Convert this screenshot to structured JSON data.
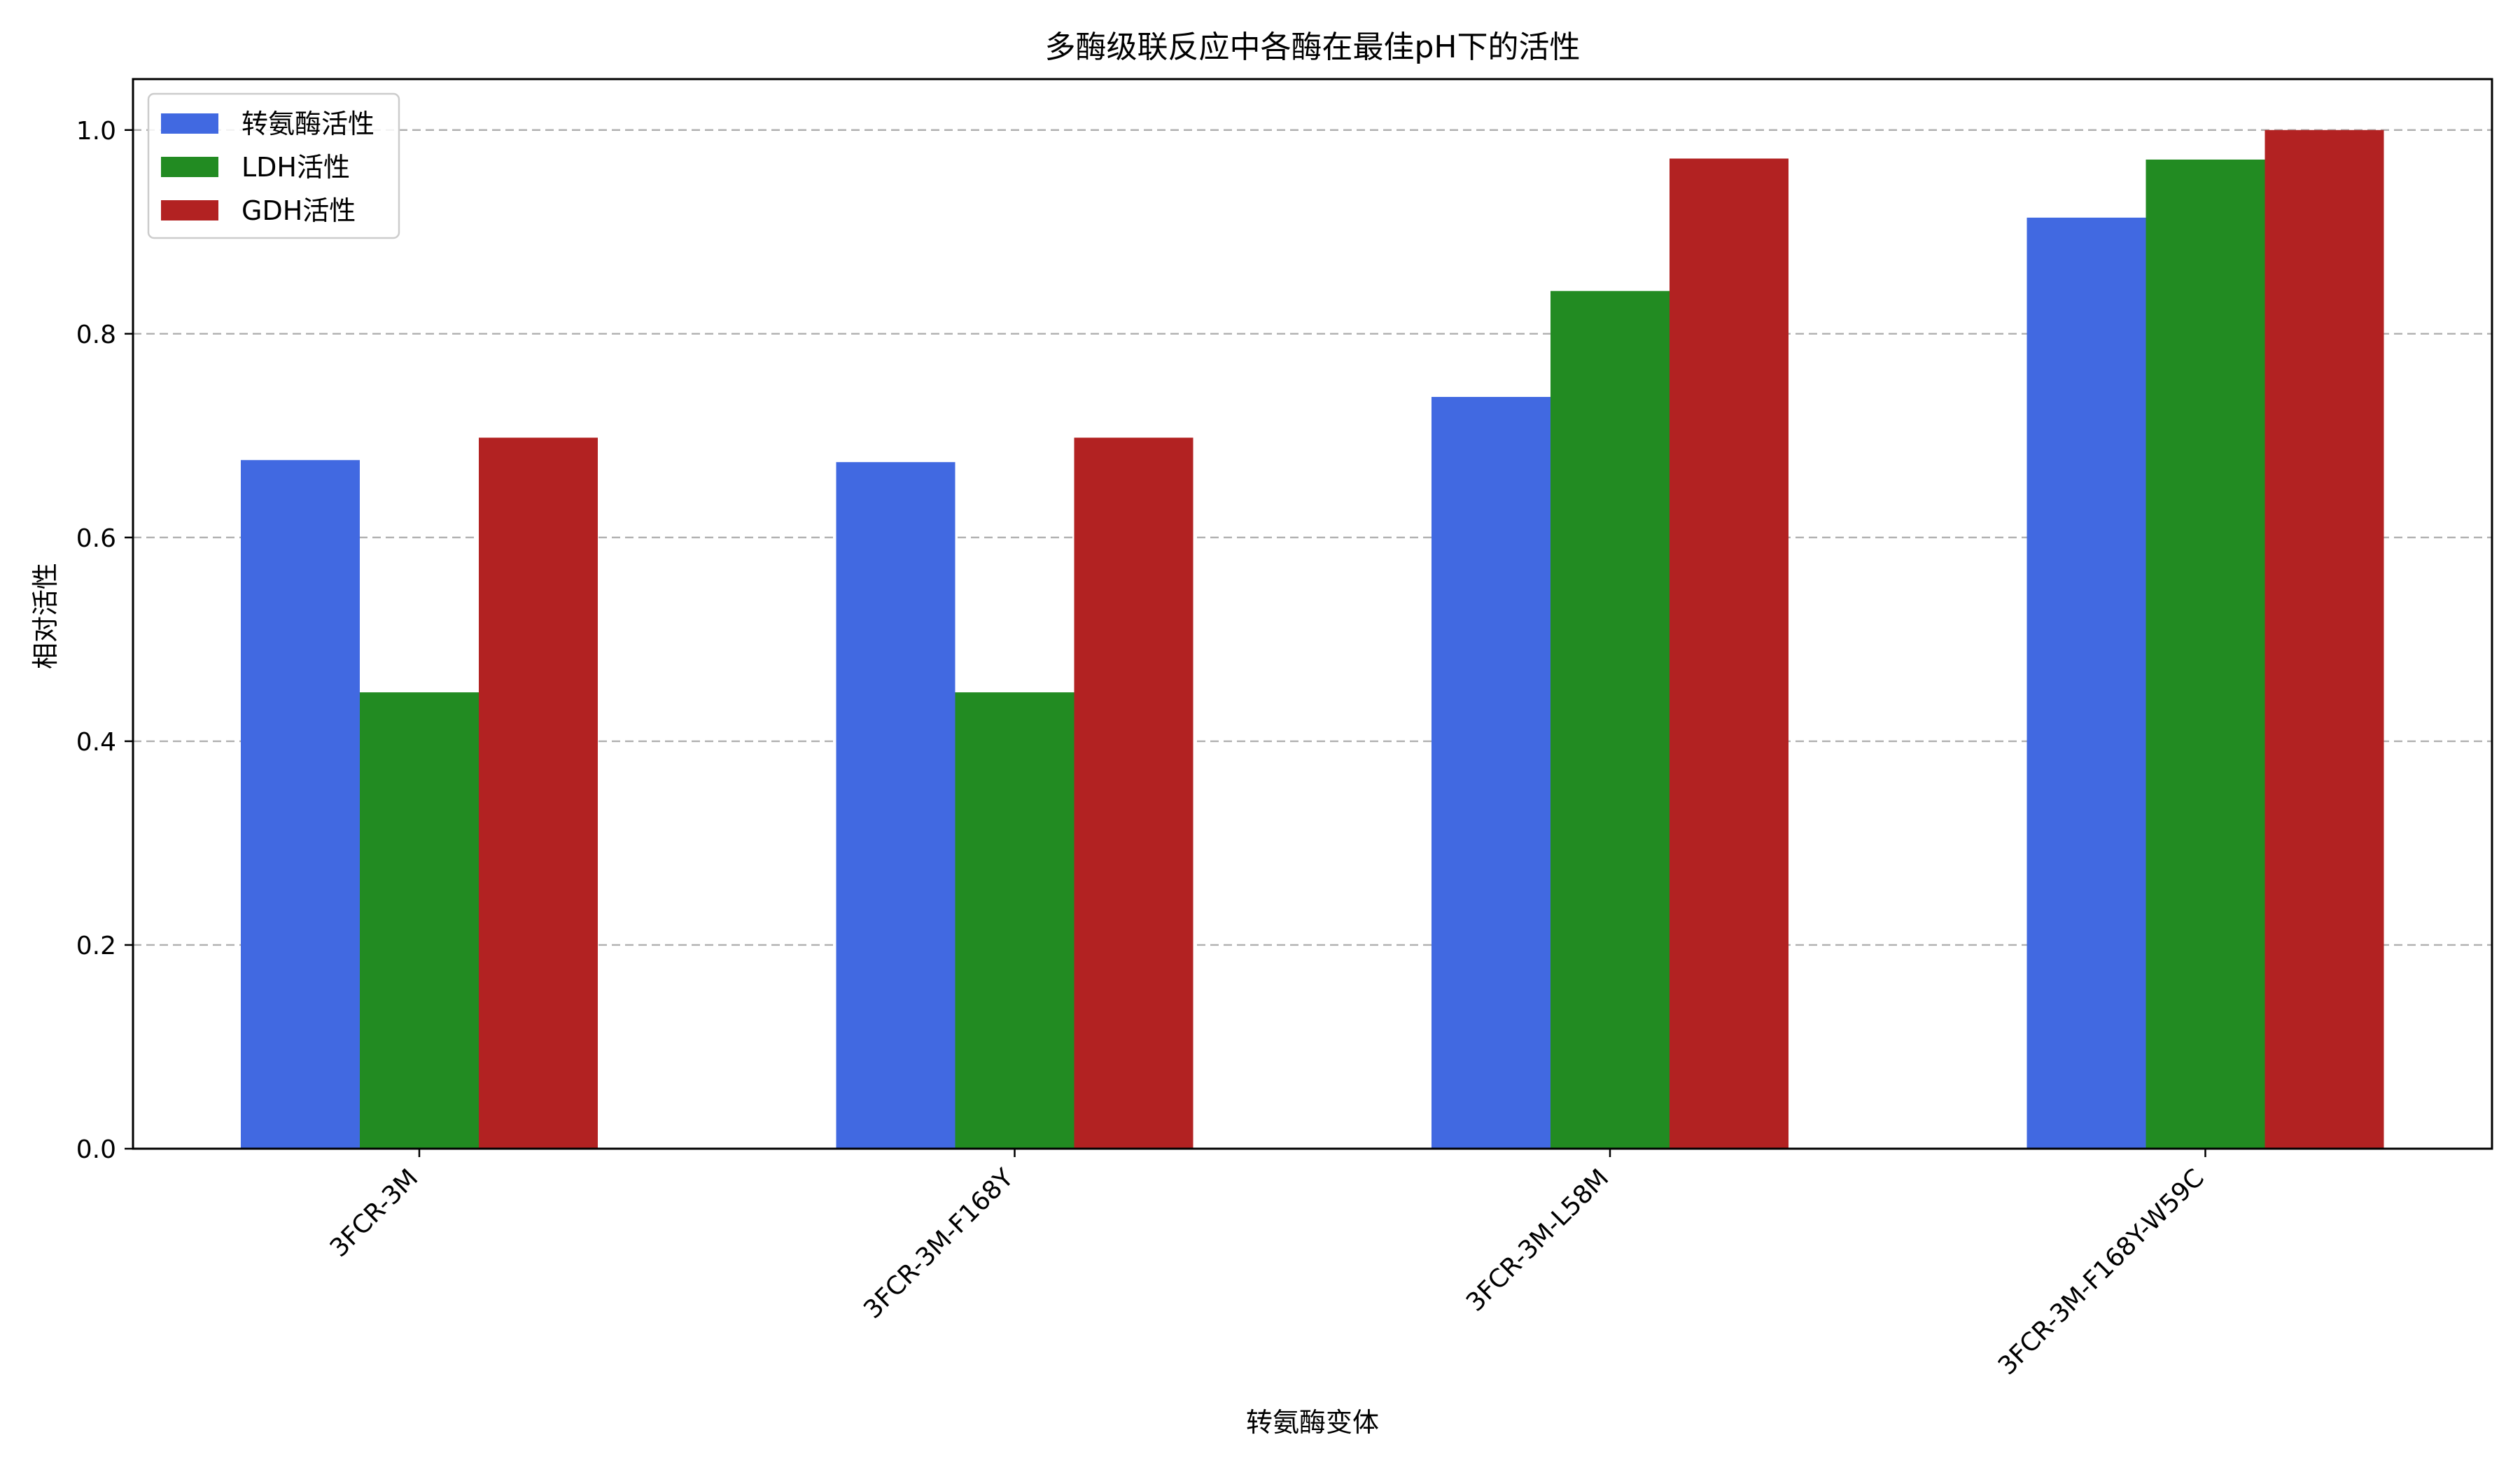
{
  "chart_data": {
    "type": "bar",
    "title": "多酶级联反应中各酶在最佳pH下的活性",
    "xlabel": "转氨酶变体",
    "ylabel": "相对活性",
    "categories": [
      "3FCR-3M",
      "3FCR-3M-F168Y",
      "3FCR-3M-L58M",
      "3FCR-3M-F168Y-W59C"
    ],
    "series": [
      {
        "name": "转氨酶活性",
        "color": "#4169e1",
        "values": [
          0.676,
          0.674,
          0.738,
          0.914
        ]
      },
      {
        "name": "LDH活性",
        "color": "#228b22",
        "values": [
          0.448,
          0.448,
          0.842,
          0.971
        ]
      },
      {
        "name": "GDH活性",
        "color": "#b22222",
        "values": [
          0.698,
          0.698,
          0.972,
          1.0
        ]
      }
    ],
    "ylim": [
      0,
      1.05
    ],
    "yticks": [
      "0.0",
      "0.2",
      "0.4",
      "0.6",
      "0.8",
      "1.0"
    ],
    "grid": "y-dashed",
    "legend_position": "top-left",
    "xtick_rotation": -45
  }
}
